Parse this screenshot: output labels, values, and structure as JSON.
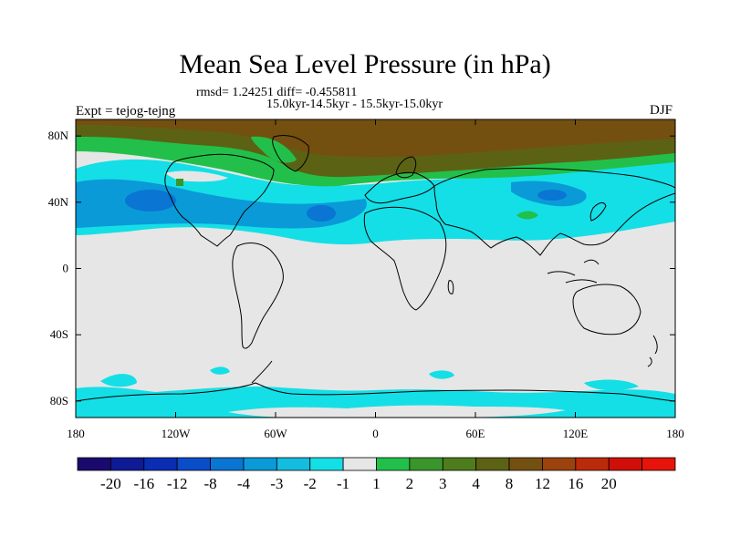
{
  "title": "Mean Sea Level Pressure (in hPa)",
  "stats_line": "rmsd= 1.24251 diff= -0.455811",
  "periods_line": "15.0kyr-14.5kyr - 15.5kyr-15.0kyr",
  "experiment_label": "Expt = tejog-tejng",
  "season_label": "DJF",
  "map": {
    "lat_ticks": [
      "80N",
      "40N",
      "0",
      "40S",
      "80S"
    ],
    "lon_ticks": [
      "180",
      "120W",
      "60W",
      "0",
      "60E",
      "120E",
      "180"
    ],
    "background_color": "#e6e6e6"
  },
  "colorbar": {
    "colors": [
      "#1a0a6e",
      "#0f1a96",
      "#0a2db4",
      "#0a4dc8",
      "#0a75d2",
      "#0a9ad8",
      "#14bde0",
      "#14dfe6",
      "#e6e6e6",
      "#22c04a",
      "#3a962a",
      "#4e7c1c",
      "#5c6214",
      "#745010",
      "#9c420e",
      "#bc2a0c",
      "#d00f0a",
      "#e6140a"
    ],
    "labels": [
      "-20",
      "-16",
      "-12",
      "-8",
      "-4",
      "-3",
      "-2",
      "-1",
      "1",
      "2",
      "3",
      "4",
      "8",
      "12",
      "16",
      "20"
    ]
  }
}
